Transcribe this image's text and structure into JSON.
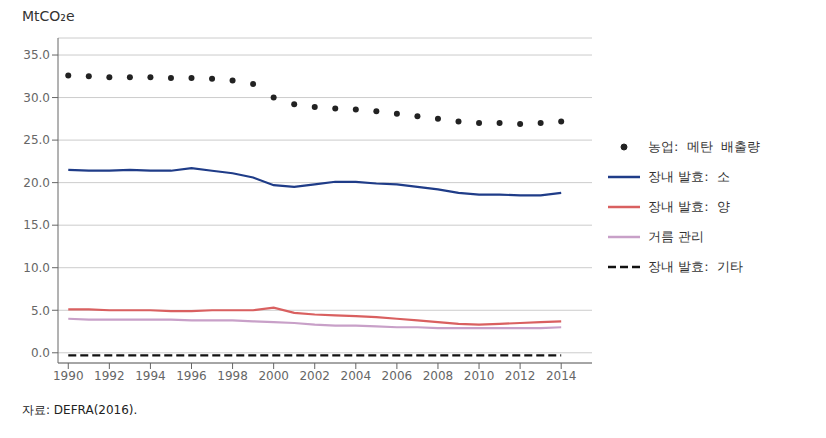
{
  "chart_data": {
    "type": "line",
    "y_label": "MtCO₂e",
    "source": "자료: DEFRA(2016).",
    "x": [
      1990,
      1991,
      1992,
      1993,
      1994,
      1995,
      1996,
      1997,
      1998,
      1999,
      2000,
      2001,
      2002,
      2003,
      2004,
      2005,
      2006,
      2007,
      2008,
      2009,
      2010,
      2011,
      2012,
      2013,
      2014
    ],
    "xlim": [
      1989.5,
      2015.5
    ],
    "xticks": [
      1990,
      1992,
      1994,
      1996,
      1998,
      2000,
      2002,
      2004,
      2006,
      2008,
      2010,
      2012,
      2014
    ],
    "ylim": [
      -1.2,
      37.0
    ],
    "yticks": [
      {
        "value": 0,
        "label": "0.0"
      },
      {
        "value": 5,
        "label": "5.0"
      },
      {
        "value": 10,
        "label": "10.0"
      },
      {
        "value": 15,
        "label": "15.0"
      },
      {
        "value": 20,
        "label": "20.0"
      },
      {
        "value": 25,
        "label": "25.0"
      },
      {
        "value": 30,
        "label": "30.0"
      },
      {
        "value": 35,
        "label": "35.0"
      }
    ],
    "grid": true,
    "legend": "right",
    "series": [
      {
        "name": "농업:  메탄  배출량",
        "color": "#222222",
        "line_style": "none",
        "marker": "dot",
        "values": [
          32.6,
          32.5,
          32.4,
          32.4,
          32.4,
          32.3,
          32.3,
          32.2,
          32.0,
          31.6,
          30.0,
          29.2,
          28.9,
          28.7,
          28.6,
          28.4,
          28.1,
          27.8,
          27.5,
          27.2,
          27.0,
          27.0,
          26.9,
          27.0,
          27.2
        ]
      },
      {
        "name": "장내 발효:  소",
        "color": "#1f3c88",
        "line_style": "solid",
        "marker": "none",
        "values": [
          21.5,
          21.4,
          21.4,
          21.5,
          21.4,
          21.4,
          21.7,
          21.4,
          21.1,
          20.6,
          19.7,
          19.5,
          19.8,
          20.1,
          20.1,
          19.9,
          19.8,
          19.5,
          19.2,
          18.8,
          18.6,
          18.6,
          18.5,
          18.5,
          18.8
        ]
      },
      {
        "name": "장내 발효:  양",
        "color": "#d96060",
        "line_style": "solid",
        "marker": "none",
        "values": [
          5.1,
          5.1,
          5.0,
          5.0,
          5.0,
          4.9,
          4.9,
          5.0,
          5.0,
          5.0,
          5.3,
          4.7,
          4.5,
          4.4,
          4.3,
          4.2,
          4.0,
          3.8,
          3.6,
          3.4,
          3.3,
          3.4,
          3.5,
          3.6,
          3.7
        ]
      },
      {
        "name": "거름 관리",
        "color": "#c8a0c8",
        "line_style": "solid",
        "marker": "none",
        "values": [
          4.0,
          3.9,
          3.9,
          3.9,
          3.9,
          3.9,
          3.8,
          3.8,
          3.8,
          3.7,
          3.6,
          3.5,
          3.3,
          3.2,
          3.2,
          3.1,
          3.0,
          3.0,
          2.9,
          2.9,
          2.9,
          2.9,
          2.9,
          2.9,
          3.0
        ]
      },
      {
        "name": "장내 발효:  기타",
        "color": "#111111",
        "line_style": "dashed",
        "marker": "none",
        "values": [
          -0.3,
          -0.3,
          -0.3,
          -0.3,
          -0.3,
          -0.3,
          -0.3,
          -0.3,
          -0.3,
          -0.3,
          -0.3,
          -0.3,
          -0.3,
          -0.3,
          -0.3,
          -0.3,
          -0.3,
          -0.3,
          -0.3,
          -0.3,
          -0.3,
          -0.3,
          -0.3,
          -0.3,
          -0.3
        ]
      }
    ]
  }
}
